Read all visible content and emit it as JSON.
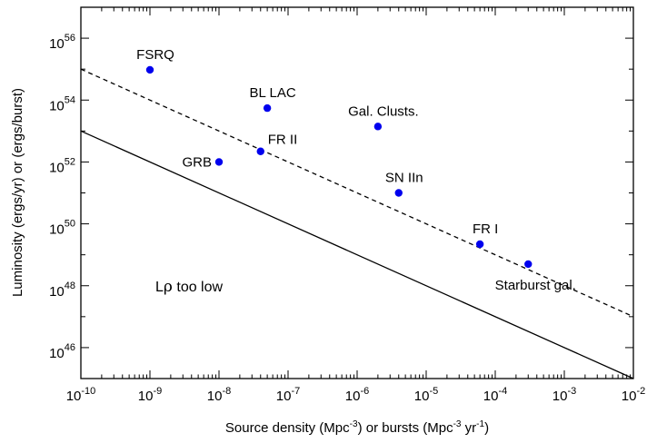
{
  "chart_data": {
    "type": "scatter",
    "title": "",
    "xlabel": {
      "pre": "Source density (Mpc",
      "sup1": "-3",
      "mid": ") or bursts (Mpc",
      "sup2": "-3",
      "mid2": " yr",
      "sup3": "-1",
      "post": ")"
    },
    "ylabel": "Luminosity (ergs/yr) or (ergs/burst)",
    "x_scale": "log",
    "y_scale": "log",
    "xlim": [
      1e-10,
      0.01
    ],
    "ylim": [
      1e+45,
      1e+57
    ],
    "grid": false,
    "x_ticks": [
      {
        "base": "10",
        "exp": "-10",
        "value": 1e-10
      },
      {
        "base": "10",
        "exp": "-9",
        "value": 1e-09
      },
      {
        "base": "10",
        "exp": "-8",
        "value": 1e-08
      },
      {
        "base": "10",
        "exp": "-7",
        "value": 1e-07
      },
      {
        "base": "10",
        "exp": "-6",
        "value": 1e-06
      },
      {
        "base": "10",
        "exp": "-5",
        "value": 1e-05
      },
      {
        "base": "10",
        "exp": "-4",
        "value": 0.0001
      },
      {
        "base": "10",
        "exp": "-3",
        "value": 0.001
      },
      {
        "base": "10",
        "exp": "-2",
        "value": 0.01
      }
    ],
    "y_ticks": [
      {
        "base": "10",
        "exp": "46",
        "value": 1e+46
      },
      {
        "base": "10",
        "exp": "48",
        "value": 1e+48
      },
      {
        "base": "10",
        "exp": "50",
        "value": 1e+50
      },
      {
        "base": "10",
        "exp": "52",
        "value": 1e+52
      },
      {
        "base": "10",
        "exp": "54",
        "value": 1e+54
      },
      {
        "base": "10",
        "exp": "56",
        "value": 1e+56
      }
    ],
    "points": [
      {
        "label": "FSRQ",
        "x": 1e-09,
        "y": 9.5e+54,
        "label_pos": "above"
      },
      {
        "label": "BL LAC",
        "x": 5e-08,
        "y": 5.5e+53,
        "label_pos": "above"
      },
      {
        "label": "Gal. Clusts.",
        "x": 2e-06,
        "y": 1.4e+53,
        "label_pos": "above"
      },
      {
        "label": "GRB",
        "x": 1e-08,
        "y": 1e+52,
        "label_pos": "left"
      },
      {
        "label": "FR II",
        "x": 4e-08,
        "y": 2.2e+52,
        "label_pos": "above-right"
      },
      {
        "label": "SN IIn",
        "x": 4e-06,
        "y": 1e+51,
        "label_pos": "above"
      },
      {
        "label": "FR I",
        "x": 6e-05,
        "y": 2.2e+49,
        "label_pos": "above"
      },
      {
        "label": "Starburst gal.",
        "x": 0.0003,
        "y": 5e+48,
        "label_pos": "below"
      }
    ],
    "point_color": "#0000ee",
    "lines": [
      {
        "style": "solid",
        "x": [
          1e-10,
          0.01
        ],
        "y": [
          1e+53,
          1e+45
        ]
      },
      {
        "style": "dashed",
        "x": [
          1e-10,
          0.01
        ],
        "y": [
          1e+55,
          1e+47
        ]
      }
    ],
    "annotations": [
      {
        "text_main": "L",
        "text_rho": "ρ",
        "text_rest": " too low",
        "x": 1.2e-09,
        "y": 1e+48
      }
    ]
  }
}
